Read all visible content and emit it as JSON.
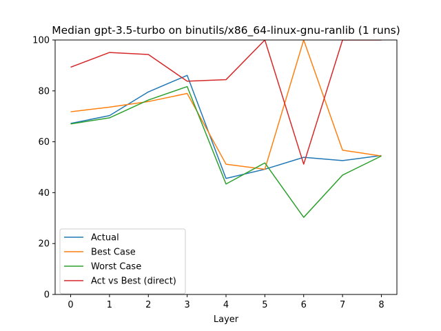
{
  "chart_data": {
    "type": "line",
    "title": "Median gpt-3.5-turbo on binutils/x86_64-linux-gnu-ranlib (1 runs)",
    "xlabel": "Layer",
    "ylabel": "",
    "x": [
      0,
      1,
      2,
      3,
      4,
      5,
      6,
      7,
      8
    ],
    "xlim": [
      -0.4,
      8.4
    ],
    "ylim": [
      0,
      100
    ],
    "xticks": [
      0,
      1,
      2,
      3,
      4,
      5,
      6,
      7,
      8
    ],
    "yticks": [
      0,
      20,
      40,
      60,
      80,
      100
    ],
    "grid": false,
    "legend": "lower-left",
    "series": [
      {
        "name": "Actual",
        "color": "#1f77b4",
        "values": [
          67.2,
          70.3,
          79.6,
          86.1,
          45.6,
          49.2,
          53.9,
          52.6,
          54.6
        ]
      },
      {
        "name": "Best Case",
        "color": "#ff7f0e",
        "values": [
          71.8,
          73.6,
          75.8,
          79.0,
          51.2,
          49.2,
          100.0,
          56.7,
          54.4
        ]
      },
      {
        "name": "Worst Case",
        "color": "#2ca02c",
        "values": [
          67.0,
          69.4,
          76.4,
          81.7,
          43.4,
          51.7,
          30.3,
          46.9,
          54.4
        ]
      },
      {
        "name": "Act vs Best (direct)",
        "color": "#d62728",
        "values": [
          89.3,
          95.1,
          94.3,
          83.8,
          84.4,
          100.0,
          51.2,
          100.0,
          100.0
        ]
      }
    ]
  }
}
